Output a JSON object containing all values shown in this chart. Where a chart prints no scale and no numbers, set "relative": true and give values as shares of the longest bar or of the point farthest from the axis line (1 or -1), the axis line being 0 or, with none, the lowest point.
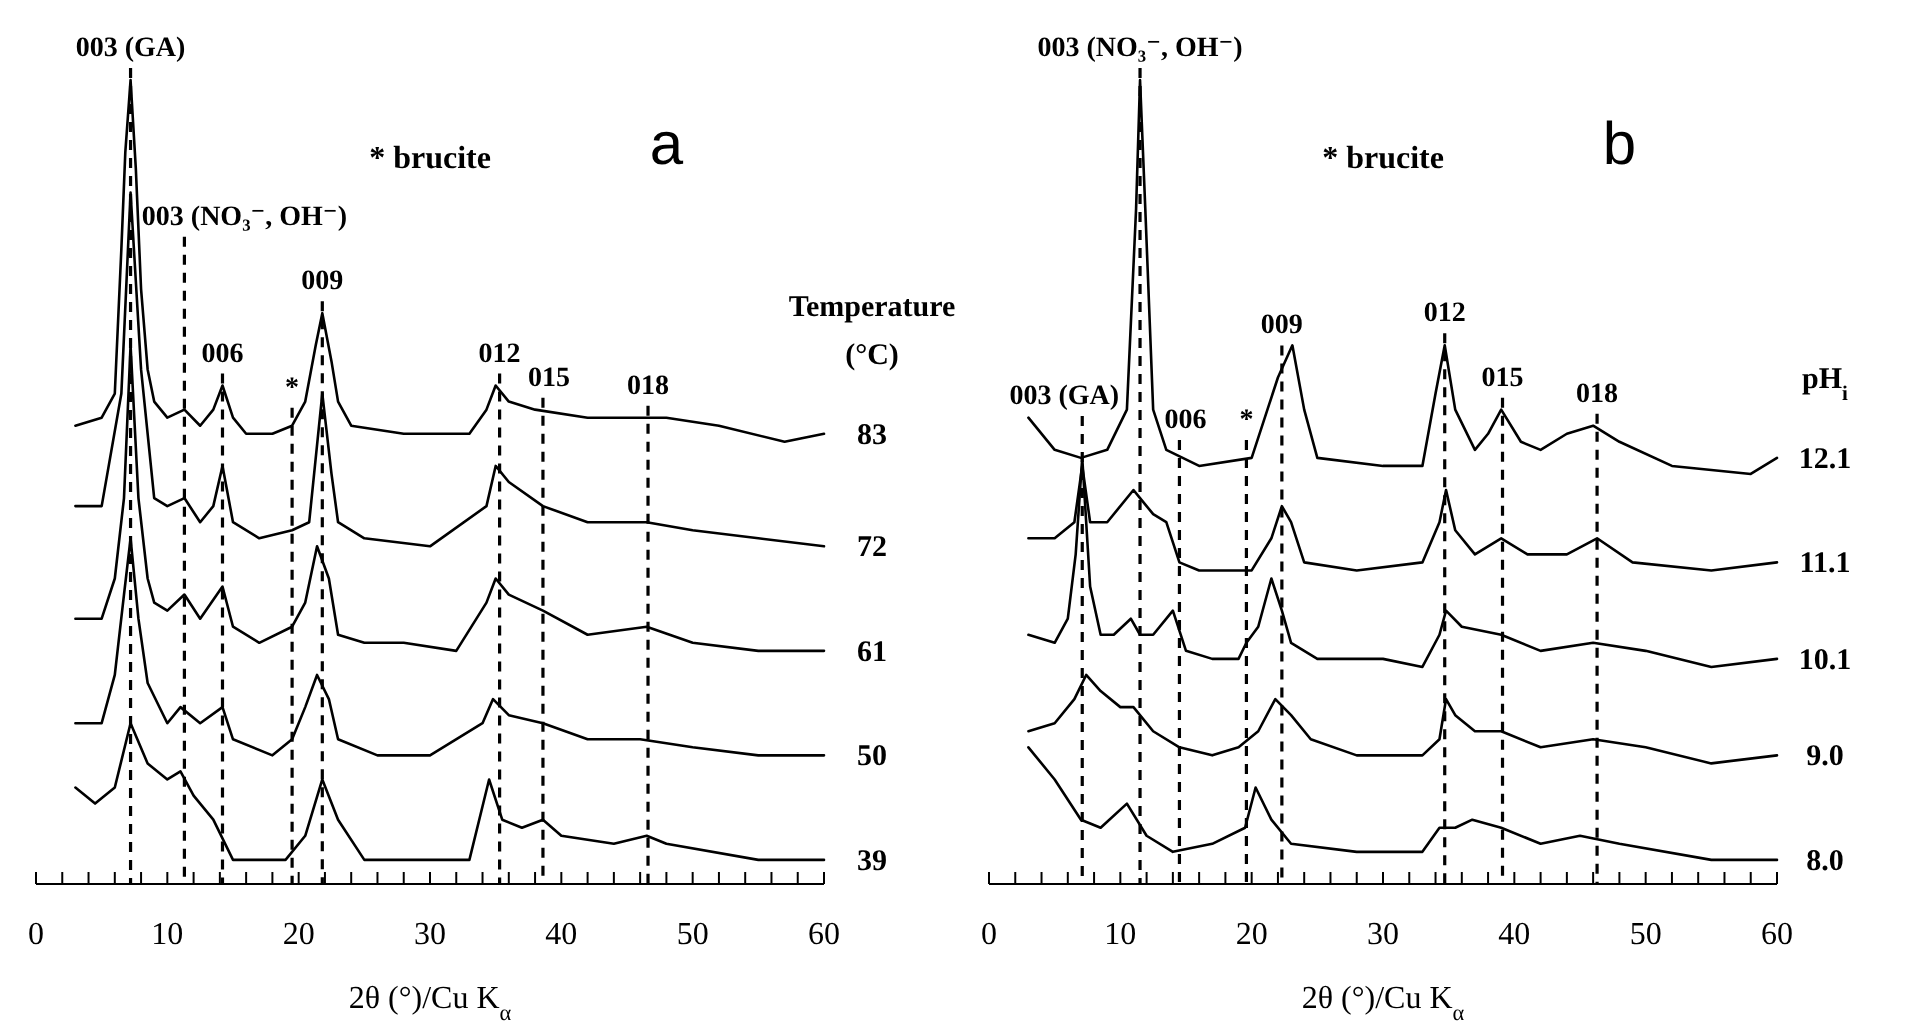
{
  "chart_data": [
    {
      "type": "line",
      "title": "a",
      "xlabel": "2θ (°)/Cu K$_{α}$",
      "legend_title": "Temperature (°C)",
      "relative": true,
      "xlim": [
        0,
        60
      ],
      "annotations": [
        "* brucite",
        {
          "text": "003 (GA)",
          "x": 7.2,
          "y": 1.0
        },
        {
          "text": "003 (NO₃⁻, OH⁻)",
          "x": 11.3,
          "y": 0.79
        },
        {
          "text": "006",
          "x": 14.2,
          "y": 0.62
        },
        {
          "text": "*",
          "x": 19.5,
          "y": 0.57
        },
        {
          "text": "009",
          "x": 21.8,
          "y": 0.71
        },
        {
          "text": "012",
          "x": 35.3,
          "y": 0.62
        },
        {
          "text": "015",
          "x": 38.6,
          "y": 0.59
        },
        {
          "text": "018",
          "x": 46.6,
          "y": 0.58
        }
      ],
      "xticks": [
        0,
        {
          "value": 2,
          "label": null
        },
        {
          "value": 4,
          "label": null
        },
        {
          "value": 6,
          "label": null
        },
        {
          "value": 8,
          "label": null
        },
        10,
        {
          "value": 12,
          "label": null
        },
        {
          "value": 14,
          "label": null
        },
        {
          "value": 16,
          "label": null
        },
        {
          "value": 18,
          "label": null
        },
        20,
        {
          "value": 22,
          "label": null
        },
        {
          "value": 24,
          "label": null
        },
        {
          "value": 26,
          "label": null
        },
        {
          "value": 28,
          "label": null
        },
        30,
        {
          "value": 32,
          "label": null
        },
        {
          "value": 34,
          "label": null
        },
        {
          "value": 36,
          "label": null
        },
        {
          "value": 38,
          "label": null
        },
        40,
        {
          "value": 42,
          "label": null
        },
        {
          "value": 44,
          "label": null
        },
        {
          "value": 46,
          "label": null
        },
        {
          "value": 48,
          "label": null
        },
        50,
        {
          "value": 52,
          "label": null
        },
        {
          "value": 54,
          "label": null
        },
        {
          "value": 56,
          "label": null
        },
        {
          "value": 58,
          "label": null
        },
        60
      ],
      "series": [
        {
          "name": "83",
          "color": "#000000",
          "x": [
            3,
            5,
            6,
            6.5,
            6.8,
            7.2,
            7.6,
            8,
            8.5,
            9,
            10,
            11.3,
            12.5,
            13.5,
            14.2,
            15,
            16,
            18,
            19.5,
            20.5,
            21.3,
            21.8,
            22.5,
            23,
            24,
            28,
            33,
            34.3,
            35,
            36,
            38,
            42,
            46,
            48,
            52,
            57,
            60
          ],
          "values": [
            0.57,
            0.58,
            0.61,
            0.79,
            0.91,
            1.0,
            0.89,
            0.74,
            0.64,
            0.6,
            0.58,
            0.59,
            0.57,
            0.59,
            0.62,
            0.58,
            0.56,
            0.56,
            0.57,
            0.6,
            0.67,
            0.71,
            0.65,
            0.6,
            0.57,
            0.56,
            0.56,
            0.59,
            0.62,
            0.6,
            0.59,
            0.58,
            0.58,
            0.58,
            0.57,
            0.55,
            0.56
          ]
        },
        {
          "name": "72",
          "color": "#000000",
          "x": [
            3,
            5,
            6.5,
            7.2,
            8,
            9,
            10,
            11.3,
            12.5,
            13.5,
            14.2,
            15,
            17,
            19.5,
            20.8,
            21.8,
            22.5,
            23,
            25,
            30,
            34.3,
            35,
            36,
            38.6,
            42,
            46.5,
            50,
            55,
            60
          ],
          "values": [
            0.47,
            0.47,
            0.61,
            0.86,
            0.64,
            0.48,
            0.47,
            0.48,
            0.45,
            0.47,
            0.52,
            0.45,
            0.43,
            0.44,
            0.45,
            0.61,
            0.51,
            0.45,
            0.43,
            0.42,
            0.47,
            0.52,
            0.5,
            0.47,
            0.45,
            0.45,
            0.44,
            0.43,
            0.42
          ]
        },
        {
          "name": "61",
          "color": "#000000",
          "x": [
            3,
            5,
            6,
            6.7,
            7.2,
            7.8,
            8.5,
            9,
            10,
            11.3,
            12.5,
            14.2,
            15,
            17,
            19.5,
            20.5,
            21.4,
            22.3,
            23,
            25,
            28,
            32,
            34.3,
            35,
            36,
            38.6,
            42,
            46.5,
            50,
            55,
            60
          ],
          "values": [
            0.33,
            0.33,
            0.38,
            0.48,
            0.67,
            0.48,
            0.38,
            0.35,
            0.34,
            0.36,
            0.33,
            0.37,
            0.32,
            0.3,
            0.32,
            0.35,
            0.42,
            0.38,
            0.31,
            0.3,
            0.3,
            0.29,
            0.35,
            0.38,
            0.36,
            0.34,
            0.31,
            0.32,
            0.3,
            0.29,
            0.29
          ]
        },
        {
          "name": "50",
          "color": "#000000",
          "x": [
            3,
            5,
            6,
            6.7,
            7.2,
            7.8,
            8.5,
            10,
            11,
            12.5,
            14.2,
            15,
            18,
            19.5,
            20.5,
            21.4,
            22.3,
            23,
            26,
            30,
            34,
            34.8,
            36,
            38.6,
            42,
            46,
            50,
            55,
            60
          ],
          "values": [
            0.2,
            0.2,
            0.26,
            0.36,
            0.43,
            0.33,
            0.25,
            0.2,
            0.22,
            0.2,
            0.22,
            0.18,
            0.16,
            0.18,
            0.22,
            0.26,
            0.23,
            0.18,
            0.16,
            0.16,
            0.2,
            0.23,
            0.21,
            0.2,
            0.18,
            0.18,
            0.17,
            0.16,
            0.16
          ]
        },
        {
          "name": "39",
          "color": "#000000",
          "x": [
            3,
            4.5,
            6,
            7.2,
            8.5,
            10,
            11,
            12,
            13.5,
            15,
            16,
            19,
            20.5,
            21.8,
            23,
            25,
            30,
            33,
            34.5,
            35.5,
            37,
            38.6,
            40,
            44,
            46.5,
            48,
            55,
            60
          ],
          "values": [
            0.12,
            0.1,
            0.12,
            0.2,
            0.15,
            0.13,
            0.14,
            0.11,
            0.08,
            0.03,
            0.03,
            0.03,
            0.06,
            0.13,
            0.08,
            0.03,
            0.03,
            0.03,
            0.13,
            0.08,
            0.07,
            0.08,
            0.06,
            0.05,
            0.06,
            0.05,
            0.03,
            0.03
          ]
        }
      ],
      "ref_lines": [
        {
          "axis": "x",
          "value": 7.2,
          "line_style": "dashed"
        },
        {
          "axis": "x",
          "value": 11.3,
          "line_style": "dashed"
        },
        {
          "axis": "x",
          "value": 14.2,
          "line_style": "dashed"
        },
        {
          "axis": "x",
          "value": 19.5,
          "line_style": "dashed"
        },
        {
          "axis": "x",
          "value": 21.8,
          "line_style": "dashed"
        },
        {
          "axis": "x",
          "value": 35.3,
          "line_style": "dashed"
        },
        {
          "axis": "x",
          "value": 38.6,
          "line_style": "dashed"
        },
        {
          "axis": "x",
          "value": 46.6,
          "line_style": "dashed"
        }
      ]
    },
    {
      "type": "line",
      "title": "b",
      "xlabel": "2θ (°)/Cu K$_{α}$",
      "legend_title": "pH$_{i}$",
      "relative": true,
      "xlim": [
        0,
        60
      ],
      "annotations": [
        "* brucite",
        {
          "text": "003 (GA)",
          "x": 7.1,
          "y": 0.53
        },
        {
          "text": "003 (NO₃⁻, OH⁻)",
          "x": 11.5,
          "y": 1.0
        },
        {
          "text": "006",
          "x": 14.5,
          "y": 0.53
        },
        {
          "text": "*",
          "x": 19.6,
          "y": 0.53
        },
        {
          "text": "009",
          "x": 22.3,
          "y": 0.64
        },
        {
          "text": "012",
          "x": 34.7,
          "y": 0.67
        },
        {
          "text": "015",
          "x": 39.1,
          "y": 0.59
        },
        {
          "text": "018",
          "x": 46.3,
          "y": 0.57
        }
      ],
      "xticks": [
        0,
        {
          "value": 2,
          "label": null
        },
        {
          "value": 4,
          "label": null
        },
        {
          "value": 6,
          "label": null
        },
        {
          "value": 8,
          "label": null
        },
        10,
        {
          "value": 12,
          "label": null
        },
        {
          "value": 14,
          "label": null
        },
        {
          "value": 16,
          "label": null
        },
        {
          "value": 18,
          "label": null
        },
        20,
        {
          "value": 22,
          "label": null
        },
        {
          "value": 24,
          "label": null
        },
        {
          "value": 26,
          "label": null
        },
        {
          "value": 28,
          "label": null
        },
        30,
        {
          "value": 32,
          "label": null
        },
        {
          "value": 34,
          "label": null
        },
        {
          "value": 36,
          "label": null
        },
        {
          "value": 38,
          "label": null
        },
        40,
        {
          "value": 42,
          "label": null
        },
        {
          "value": 44,
          "label": null
        },
        {
          "value": 46,
          "label": null
        },
        {
          "value": 48,
          "label": null
        },
        50,
        {
          "value": 52,
          "label": null
        },
        {
          "value": 54,
          "label": null
        },
        {
          "value": 56,
          "label": null
        },
        {
          "value": 58,
          "label": null
        },
        60
      ],
      "series": [
        {
          "name": "12.1",
          "color": "#000000",
          "x": [
            3,
            5,
            7,
            9,
            10.5,
            11.2,
            11.5,
            11.9,
            12.5,
            13.5,
            16,
            20,
            22,
            23.1,
            24,
            25,
            30,
            33,
            34,
            34.7,
            35.5,
            37,
            38,
            39,
            40.5,
            42,
            44,
            46,
            48,
            52,
            58,
            60
          ],
          "values": [
            0.58,
            0.54,
            0.53,
            0.54,
            0.59,
            0.84,
            1.0,
            0.84,
            0.59,
            0.54,
            0.52,
            0.53,
            0.63,
            0.67,
            0.59,
            0.53,
            0.52,
            0.52,
            0.61,
            0.67,
            0.59,
            0.54,
            0.56,
            0.59,
            0.55,
            0.54,
            0.56,
            0.57,
            0.55,
            0.52,
            0.51,
            0.53
          ]
        },
        {
          "name": "11.1",
          "color": "#000000",
          "x": [
            3,
            5,
            6.5,
            7.1,
            7.7,
            9,
            11,
            11.5,
            12.5,
            13.5,
            14.5,
            16,
            20,
            21.5,
            22.3,
            23,
            24,
            28,
            33,
            34.3,
            34.8,
            35.5,
            37,
            39,
            41,
            44,
            46.3,
            49,
            55,
            60
          ],
          "values": [
            0.43,
            0.43,
            0.45,
            0.52,
            0.45,
            0.45,
            0.49,
            0.48,
            0.46,
            0.45,
            0.4,
            0.39,
            0.39,
            0.43,
            0.47,
            0.45,
            0.4,
            0.39,
            0.4,
            0.45,
            0.49,
            0.44,
            0.41,
            0.43,
            0.41,
            0.41,
            0.43,
            0.4,
            0.39,
            0.4
          ]
        },
        {
          "name": "10.1",
          "color": "#000000",
          "x": [
            3,
            5,
            6,
            6.6,
            7.1,
            7.7,
            8.5,
            9.5,
            10.8,
            11.5,
            12.5,
            14,
            15,
            17,
            19,
            19.6,
            20.5,
            21.5,
            22.3,
            23,
            25,
            30,
            33,
            34.3,
            34.8,
            36,
            39,
            42,
            46,
            50,
            55,
            60
          ],
          "values": [
            0.31,
            0.3,
            0.33,
            0.41,
            0.53,
            0.37,
            0.31,
            0.31,
            0.33,
            0.31,
            0.31,
            0.34,
            0.29,
            0.28,
            0.28,
            0.3,
            0.32,
            0.38,
            0.34,
            0.3,
            0.28,
            0.28,
            0.27,
            0.31,
            0.34,
            0.32,
            0.31,
            0.29,
            0.3,
            0.29,
            0.27,
            0.28
          ]
        },
        {
          "name": "9.0",
          "color": "#000000",
          "x": [
            3,
            5,
            6.5,
            7.4,
            8.5,
            10,
            11,
            12.5,
            14.5,
            17,
            19,
            20.5,
            21.8,
            23,
            24.5,
            28,
            33,
            34.3,
            34.8,
            35.5,
            37,
            39,
            42,
            46,
            50,
            55,
            60
          ],
          "values": [
            0.19,
            0.2,
            0.23,
            0.26,
            0.24,
            0.22,
            0.22,
            0.19,
            0.17,
            0.16,
            0.17,
            0.19,
            0.23,
            0.21,
            0.18,
            0.16,
            0.16,
            0.18,
            0.23,
            0.21,
            0.19,
            0.19,
            0.17,
            0.18,
            0.17,
            0.15,
            0.16
          ]
        },
        {
          "name": "8.0",
          "color": "#000000",
          "x": [
            3,
            5,
            7,
            8.5,
            10.5,
            12,
            14,
            17,
            19.5,
            20.3,
            21.5,
            23,
            28,
            33,
            34.3,
            35.5,
            36.8,
            39,
            42,
            45,
            48,
            55,
            60
          ],
          "values": [
            0.17,
            0.13,
            0.08,
            0.07,
            0.1,
            0.06,
            0.04,
            0.05,
            0.07,
            0.12,
            0.08,
            0.05,
            0.04,
            0.04,
            0.07,
            0.07,
            0.08,
            0.07,
            0.05,
            0.06,
            0.05,
            0.03,
            0.03
          ]
        }
      ],
      "ref_lines": [
        {
          "axis": "x",
          "value": 7.1,
          "line_style": "dashed"
        },
        {
          "axis": "x",
          "value": 11.5,
          "line_style": "dashed"
        },
        {
          "axis": "x",
          "value": 14.5,
          "line_style": "dashed"
        },
        {
          "axis": "x",
          "value": 19.6,
          "line_style": "dashed"
        },
        {
          "axis": "x",
          "value": 22.3,
          "line_style": "dashed"
        },
        {
          "axis": "x",
          "value": 34.7,
          "line_style": "dashed"
        },
        {
          "axis": "x",
          "value": 39.1,
          "line_style": "dashed"
        },
        {
          "axis": "x",
          "value": 46.3,
          "line_style": "dashed"
        }
      ]
    }
  ]
}
